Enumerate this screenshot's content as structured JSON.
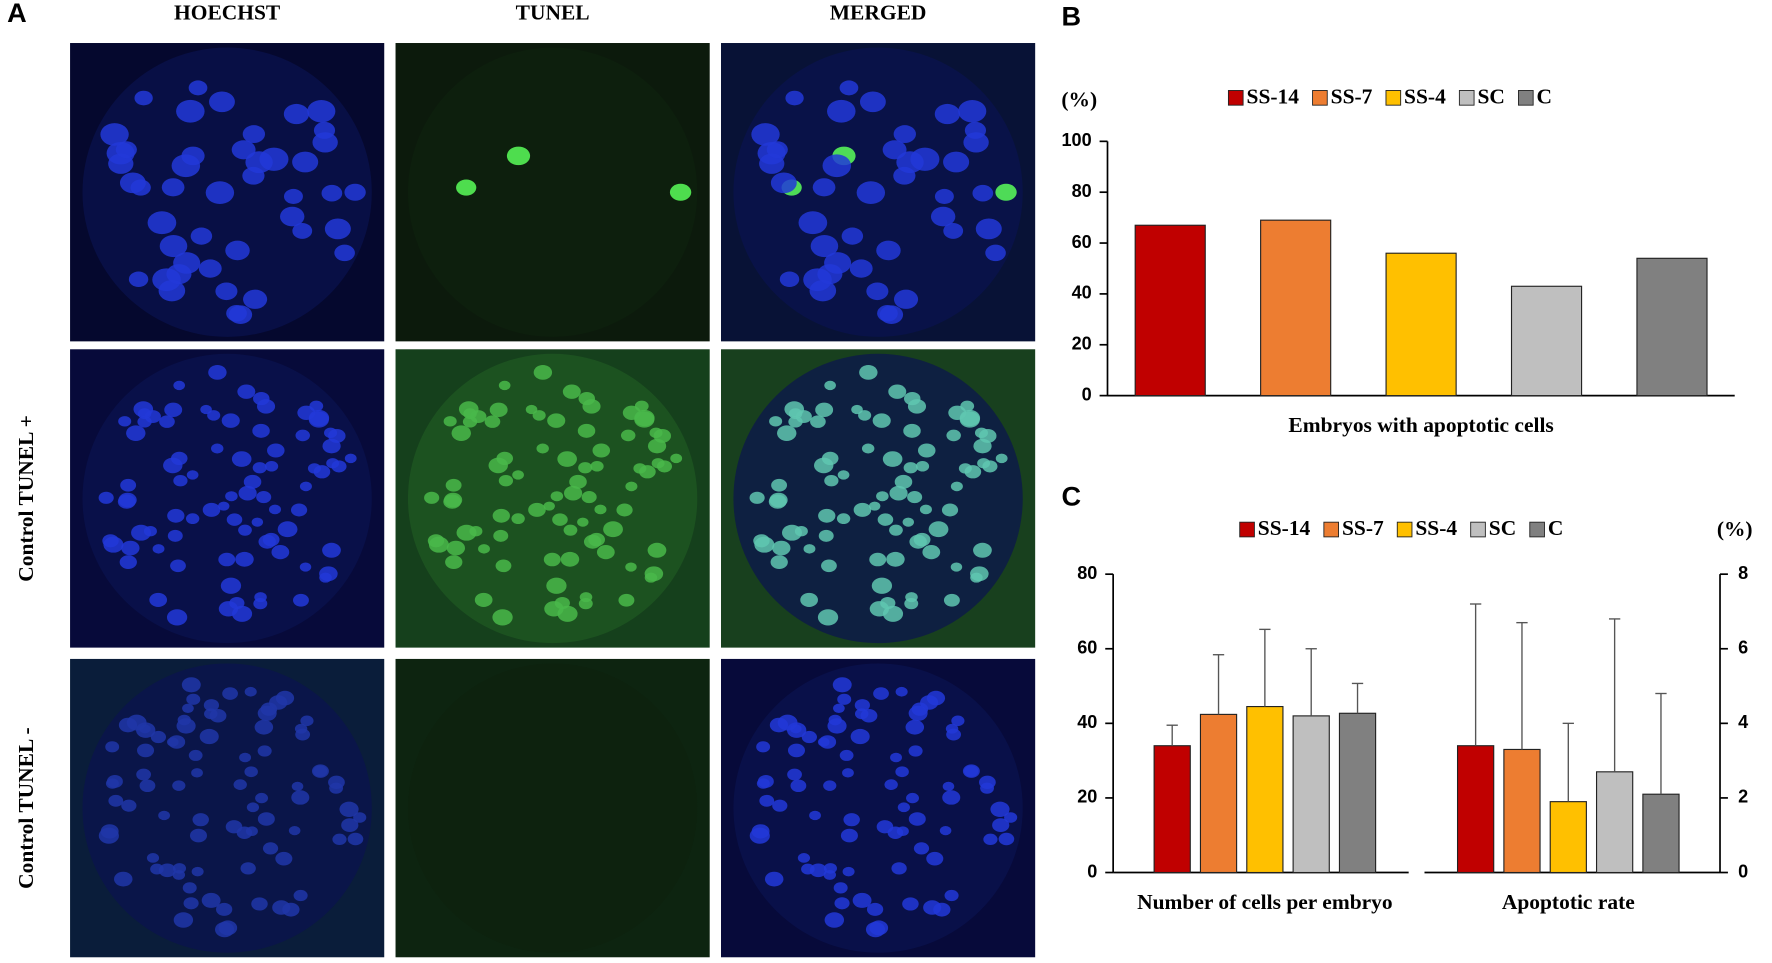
{
  "panel_a": {
    "label": "A",
    "columns": [
      "HOECHST",
      "TUNEL",
      "MERGED"
    ],
    "row_labels": [
      "Control TUNEL +",
      "Control TUNEL -"
    ]
  },
  "chart_data": [
    {
      "panel": "B",
      "type": "bar",
      "y_unit": "(%)",
      "categories": [
        "Embryos with apoptotic cells"
      ],
      "series": [
        {
          "name": "SS-14",
          "color": "#c00000",
          "values": [
            67
          ]
        },
        {
          "name": "SS-7",
          "color": "#ed7d31",
          "values": [
            69
          ]
        },
        {
          "name": "SS-4",
          "color": "#ffc000",
          "values": [
            56
          ]
        },
        {
          "name": "SC",
          "color": "#bfbfbf",
          "values": [
            43
          ]
        },
        {
          "name": "C",
          "color": "#808080",
          "values": [
            54
          ]
        }
      ],
      "ylim": [
        0,
        100
      ],
      "yticks": [
        0,
        20,
        40,
        60,
        80,
        100
      ]
    },
    {
      "panel": "C",
      "type": "bar",
      "y2_unit": "(%)",
      "categories": [
        "Number of cells per embryo",
        "Apoptotic rate"
      ],
      "category_axis": [
        "y",
        "y2"
      ],
      "series": [
        {
          "name": "SS-14",
          "color": "#c00000",
          "values": [
            34,
            3.4
          ],
          "errors": [
            5.5,
            3.8
          ]
        },
        {
          "name": "SS-7",
          "color": "#ed7d31",
          "values": [
            42.4,
            3.3
          ],
          "errors": [
            16,
            3.4
          ]
        },
        {
          "name": "SS-4",
          "color": "#ffc000",
          "values": [
            44.5,
            1.9
          ],
          "errors": [
            20.7,
            2.1
          ]
        },
        {
          "name": "SC",
          "color": "#bfbfbf",
          "values": [
            42,
            2.7
          ],
          "errors": [
            18,
            4.1
          ]
        },
        {
          "name": "C",
          "color": "#808080",
          "values": [
            42.7,
            2.1
          ],
          "errors": [
            8,
            2.7
          ]
        }
      ],
      "ylim": [
        0,
        80
      ],
      "yticks": [
        0,
        20,
        40,
        60,
        80
      ],
      "y2lim": [
        0,
        8
      ],
      "y2ticks": [
        0,
        2,
        4,
        6,
        8
      ]
    }
  ]
}
